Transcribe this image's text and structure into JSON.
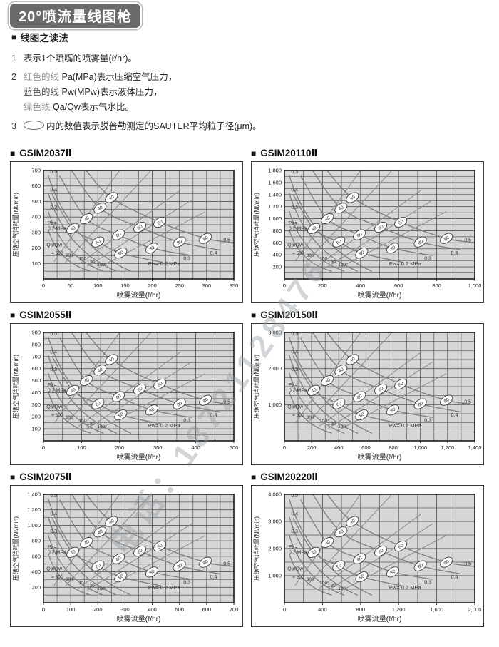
{
  "page": {
    "title": "20°喷流量线图枪"
  },
  "legend": {
    "bullet": "■",
    "heading": "线图之读法",
    "item1": {
      "no": "1",
      "text": "表示1个喷嘴的喷雾量(ℓ/hr)。"
    },
    "item2": {
      "no": "2",
      "lines": [
        [
          {
            "text": "红色的线 ",
            "color": "#979797"
          },
          {
            "text": "Pa(MPa)表示压缩空气压力，"
          }
        ],
        [
          {
            "text": "蓝色的线 ",
            "color": "#565656"
          },
          {
            "text": "Pw(MPw)表示液体压力，"
          }
        ],
        [
          {
            "text": "绿色线 ",
            "color": "#979797"
          },
          {
            "text": "Qa/Qw表示气水比。"
          }
        ]
      ]
    },
    "item3": {
      "no": "3",
      "oval_icon": "oval-icon",
      "text": "内的数值表示脱普勒测定的SAUTER平均粒子径(μm)。"
    }
  },
  "watermark": {
    "text": "电话：18721128476",
    "color": "rgba(148,156,163,0.42)"
  },
  "charts_common": {
    "bullet": "■",
    "ylabel": "压缩空气消耗量(Nℓ/min)",
    "xlabel": "喷雾流量(ℓ/hr)",
    "pa_left_labels": [
      "0.5",
      "0.4",
      "0.3"
    ],
    "pa_block": [
      "Pa=",
      "0.2 MPa"
    ],
    "qaqw_header": "Qa/Qw",
    "qaqw_line_labels": [
      "= 500",
      "300",
      "150",
      "130",
      "100"
    ],
    "pw_right_labels": [
      "0.3",
      "0.4",
      "0.5"
    ],
    "pw_bottom_label": "Pw= 0.2 MPa",
    "oval_values": [
      "40",
      "60",
      "80"
    ],
    "plot_bg": "#d6d6d6",
    "grid_color": "#565656",
    "curve_color": "#7d7d7d",
    "line_color": "#8f8f8f"
  },
  "chart_data": [
    {
      "type": "line",
      "title": "GSIM2037Ⅱ",
      "xlabel": "喷雾流量(ℓ/hr)",
      "ylabel": "压缩空气消耗量(Nℓ/min)",
      "xlim": [
        0,
        350
      ],
      "ylim": [
        0,
        700
      ],
      "x_tick_step": 50,
      "x_minor_step": 25,
      "y_tick_step": 100,
      "y_minor_step": 50,
      "series": [
        {
          "name": "Pa 压缩空气压力(MPa)",
          "values": [
            0.5,
            0.4,
            0.3,
            0.2
          ]
        },
        {
          "name": "Pw 液体压力(MPa)",
          "values": [
            0.5,
            0.4,
            0.3,
            0.2
          ]
        },
        {
          "name": "Qa/Qw 气水比",
          "values": [
            500,
            300,
            150,
            130,
            100
          ]
        },
        {
          "name": "SAUTER平均粒子径(μm)",
          "values": [
            40,
            60,
            80
          ]
        }
      ]
    },
    {
      "type": "line",
      "title": "GSIM20110Ⅱ",
      "xlabel": "喷雾流量(ℓ/hr)",
      "ylabel": "压缩空气消耗量(Nℓ/min)",
      "xlim": [
        0,
        1000
      ],
      "ylim": [
        0,
        1800
      ],
      "x_tick_step": 200,
      "x_minor_step": 100,
      "y_tick_step": 200,
      "y_minor_step": 100,
      "series": [
        {
          "name": "Pa 压缩空气压力(MPa)",
          "values": [
            0.5,
            0.4,
            0.3,
            0.2
          ]
        },
        {
          "name": "Pw 液体压力(MPa)",
          "values": [
            0.5,
            0.4,
            0.3,
            0.2
          ]
        },
        {
          "name": "Qa/Qw 气水比",
          "values": [
            500,
            300,
            150,
            130,
            100
          ]
        },
        {
          "name": "SAUTER平均粒子径(μm)",
          "values": [
            40,
            60,
            80
          ]
        }
      ]
    },
    {
      "type": "line",
      "title": "GSIM2055Ⅱ",
      "xlabel": "喷雾流量(ℓ/hr)",
      "ylabel": "压缩空气消耗量(Nℓ/min)",
      "xlim": [
        0,
        500
      ],
      "ylim": [
        0,
        900
      ],
      "x_tick_step": 100,
      "x_minor_step": 50,
      "y_tick_step": 100,
      "y_minor_step": 50,
      "series": [
        {
          "name": "Pa 压缩空气压力(MPa)",
          "values": [
            0.5,
            0.4,
            0.3,
            0.2
          ]
        },
        {
          "name": "Pw 液体压力(MPa)",
          "values": [
            0.5,
            0.4,
            0.3,
            0.2
          ]
        },
        {
          "name": "Qa/Qw 气水比",
          "values": [
            500,
            300,
            150,
            130,
            100
          ]
        },
        {
          "name": "SAUTER平均粒子径(μm)",
          "values": [
            40,
            60,
            80
          ]
        }
      ]
    },
    {
      "type": "line",
      "title": "GSIM20150Ⅱ",
      "xlabel": "喷雾流量(ℓ/hr)",
      "ylabel": "压缩空气消耗量(Nℓ/min)",
      "xlim": [
        0,
        1400
      ],
      "ylim": [
        0,
        3000
      ],
      "x_tick_step": 200,
      "x_minor_step": 100,
      "y_tick_step": 1000,
      "y_minor_step": 250,
      "series": [
        {
          "name": "Pa 压缩空气压力(MPa)",
          "values": [
            0.5,
            0.4,
            0.3,
            0.2
          ]
        },
        {
          "name": "Pw 液体压力(MPa)",
          "values": [
            0.5,
            0.4,
            0.3,
            0.2
          ]
        },
        {
          "name": "Qa/Qw 气水比",
          "values": [
            500,
            300,
            150,
            130,
            100
          ]
        },
        {
          "name": "SAUTER平均粒子径(μm)",
          "values": [
            40,
            60,
            80
          ]
        }
      ]
    },
    {
      "type": "line",
      "title": "GSIM2075Ⅱ",
      "xlabel": "喷雾流量(ℓ/hr)",
      "ylabel": "压缩空气消耗量(Nℓ/min)",
      "xlim": [
        0,
        700
      ],
      "ylim": [
        0,
        1400
      ],
      "x_tick_step": 100,
      "x_minor_step": 50,
      "y_tick_step": 200,
      "y_minor_step": 100,
      "series": [
        {
          "name": "Pa 压缩空气压力(MPa)",
          "values": [
            0.5,
            0.4,
            0.3,
            0.2
          ]
        },
        {
          "name": "Pw 液体压力(MPa)",
          "values": [
            0.5,
            0.4,
            0.3,
            0.2
          ]
        },
        {
          "name": "Qa/Qw 气水比",
          "values": [
            500,
            300,
            150,
            130,
            100
          ]
        },
        {
          "name": "SAUTER平均粒子径(μm)",
          "values": [
            40,
            60,
            80
          ]
        }
      ]
    },
    {
      "type": "line",
      "title": "GSIM20220Ⅱ",
      "xlabel": "喷雾流量(ℓ/hr)",
      "ylabel": "压缩空气消耗量(Nℓ/min)",
      "xlim": [
        0,
        2000
      ],
      "ylim": [
        0,
        4000
      ],
      "x_tick_step": 400,
      "x_minor_step": 200,
      "y_tick_step": 1000,
      "y_minor_step": 500,
      "series": [
        {
          "name": "Pa 压缩空气压力(MPa)",
          "values": [
            0.5,
            0.4,
            0.3,
            0.2
          ]
        },
        {
          "name": "Pw 液体压力(MPa)",
          "values": [
            0.5,
            0.4,
            0.3,
            0.2
          ]
        },
        {
          "name": "Qa/Qw 气水比",
          "values": [
            500,
            300,
            150,
            130,
            100
          ]
        },
        {
          "name": "SAUTER平均粒子径(μm)",
          "values": [
            40,
            60,
            80
          ]
        }
      ]
    }
  ]
}
